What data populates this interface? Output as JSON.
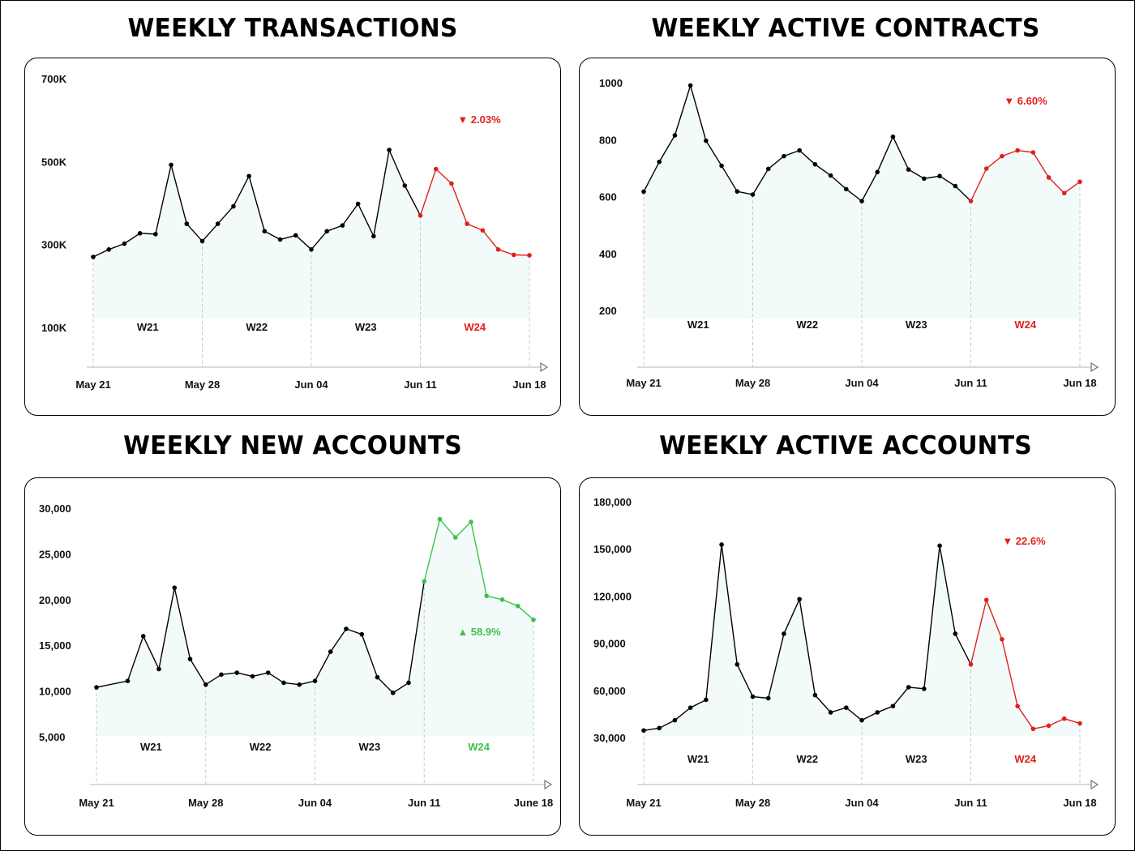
{
  "colors": {
    "line": "#000000",
    "down": "#e0201b",
    "up": "#3cc24a",
    "guide": "#c8c8c8",
    "shade": "#eaf7f6"
  },
  "chart_data": [
    {
      "id": "transactions",
      "type": "line",
      "title": "WEEKLY TRANSACTIONS",
      "x": [
        "May 21",
        "May 22",
        "May 23",
        "May 24",
        "May 25",
        "May 26",
        "May 27",
        "May 28",
        "May 29",
        "May 30",
        "May 31",
        "Jun 01",
        "Jun 02",
        "Jun 03",
        "Jun 04",
        "Jun 05",
        "Jun 06",
        "Jun 07",
        "Jun 08",
        "Jun 09",
        "Jun 10",
        "Jun 11",
        "Jun 12",
        "Jun 13",
        "Jun 14",
        "Jun 15",
        "Jun 16",
        "Jun 17",
        "Jun 18"
      ],
      "values": [
        270000,
        288000,
        302000,
        327000,
        325000,
        492000,
        350000,
        308000,
        350000,
        392000,
        465000,
        332000,
        312000,
        322000,
        288000,
        332000,
        346000,
        398000,
        320000,
        528000,
        442000,
        370000,
        482000,
        447000,
        350000,
        334000,
        288000,
        275000,
        274000
      ],
      "highlight_from": 21,
      "highlight_color": "down",
      "xticks": [
        "May 21",
        "May 28",
        "Jun 04",
        "Jun 11",
        "Jun 18"
      ],
      "yticks": [
        "700K",
        "500K",
        "300K",
        "100K"
      ],
      "ytick_values": [
        700000,
        500000,
        300000,
        100000
      ],
      "weeks": [
        "W21",
        "W22",
        "W23",
        "W24"
      ],
      "change": "▼ 2.03%",
      "change_color": "down"
    },
    {
      "id": "contracts",
      "type": "line",
      "title": "WEEKLY ACTIVE CONTRACTS",
      "x": [
        "May 21",
        "May 22",
        "May 23",
        "May 24",
        "May 25",
        "May 26",
        "May 27",
        "May 28",
        "May 29",
        "May 30",
        "May 31",
        "Jun 01",
        "Jun 02",
        "Jun 03",
        "Jun 04",
        "Jun 05",
        "Jun 06",
        "Jun 07",
        "Jun 08",
        "Jun 09",
        "Jun 10",
        "Jun 11",
        "Jun 12",
        "Jun 13",
        "Jun 14",
        "Jun 15",
        "Jun 16",
        "Jun 17",
        "Jun 18"
      ],
      "values": [
        617,
        722,
        815,
        990,
        796,
        708,
        618,
        607,
        697,
        742,
        762,
        713,
        674,
        626,
        584,
        686,
        810,
        695,
        663,
        672,
        637,
        584,
        698,
        742,
        762,
        755,
        667,
        612,
        652
      ],
      "highlight_from": 21,
      "highlight_color": "down",
      "xticks": [
        "May 21",
        "May 28",
        "Jun 04",
        "Jun 11",
        "Jun 18"
      ],
      "yticks": [
        "1000",
        "800",
        "600",
        "400",
        "200"
      ],
      "ytick_values": [
        1000,
        800,
        600,
        400,
        200
      ],
      "weeks": [
        "W21",
        "W22",
        "W23",
        "W24"
      ],
      "change": "▼ 6.60%",
      "change_color": "down"
    },
    {
      "id": "new-accounts",
      "type": "line",
      "title": "WEEKLY NEW ACCOUNTS",
      "x": [
        "May 21",
        "May 23",
        "May 24",
        "May 25",
        "May 26",
        "May 27",
        "May 28",
        "May 29",
        "May 30",
        "May 31",
        "Jun 01",
        "Jun 02",
        "Jun 03",
        "Jun 04",
        "Jun 05",
        "Jun 06",
        "Jun 07",
        "Jun 08",
        "Jun 09",
        "Jun 10",
        "Jun 11",
        "Jun 12",
        "Jun 13",
        "Jun 14",
        "Jun 15",
        "Jun 16",
        "Jun 17",
        "June 18"
      ],
      "values": [
        10400,
        11100,
        16000,
        12400,
        21300,
        13500,
        10700,
        11800,
        12000,
        11600,
        12000,
        10900,
        10700,
        11100,
        14300,
        16800,
        16200,
        11500,
        9800,
        10900,
        22000,
        28800,
        26800,
        28500,
        20400,
        20000,
        19300,
        17800
      ],
      "highlight_from": 20,
      "highlight_color": "up",
      "xticks": [
        "May 21",
        "May 28",
        "Jun 04",
        "Jun 11",
        "June 18"
      ],
      "yticks": [
        "30,000",
        "25,000",
        "20,000",
        "15,000",
        "10,000",
        "5,000"
      ],
      "ytick_values": [
        30000,
        25000,
        20000,
        15000,
        10000,
        5000
      ],
      "weeks": [
        "W21",
        "W22",
        "W23",
        "W24"
      ],
      "change": "▲ 58.9%",
      "change_color": "up"
    },
    {
      "id": "active-accounts",
      "type": "line",
      "title": "WEEKLY ACTIVE ACCOUNTS",
      "x": [
        "May 21",
        "May 22",
        "May 23",
        "May 24",
        "May 25",
        "May 26",
        "May 27",
        "May 28",
        "May 29",
        "May 30",
        "May 31",
        "Jun 01",
        "Jun 02",
        "Jun 03",
        "Jun 04",
        "Jun 05",
        "Jun 06",
        "Jun 07",
        "Jun 08",
        "Jun 09",
        "Jun 10",
        "Jun 11",
        "Jun 12",
        "Jun 13",
        "Jun 14",
        "Jun 15",
        "Jun 16",
        "Jun 17",
        "Jun 18"
      ],
      "values": [
        34500,
        36000,
        41000,
        49000,
        54000,
        152700,
        76500,
        56000,
        55000,
        96000,
        118000,
        57000,
        46000,
        49000,
        41000,
        46000,
        50000,
        62000,
        61000,
        152000,
        96000,
        76500,
        117500,
        92500,
        50000,
        35500,
        37500,
        42000,
        39000
      ],
      "highlight_from": 21,
      "highlight_color": "down",
      "xticks": [
        "May 21",
        "May 28",
        "Jun 04",
        "Jun 11",
        "Jun 18"
      ],
      "yticks": [
        "180,000",
        "150,000",
        "120,000",
        "90,000",
        "60,000",
        "30,000"
      ],
      "ytick_values": [
        180000,
        150000,
        120000,
        90000,
        60000,
        30000
      ],
      "weeks": [
        "W21",
        "W22",
        "W23",
        "W24"
      ],
      "change": "▼ 22.6%",
      "change_color": "down"
    }
  ]
}
